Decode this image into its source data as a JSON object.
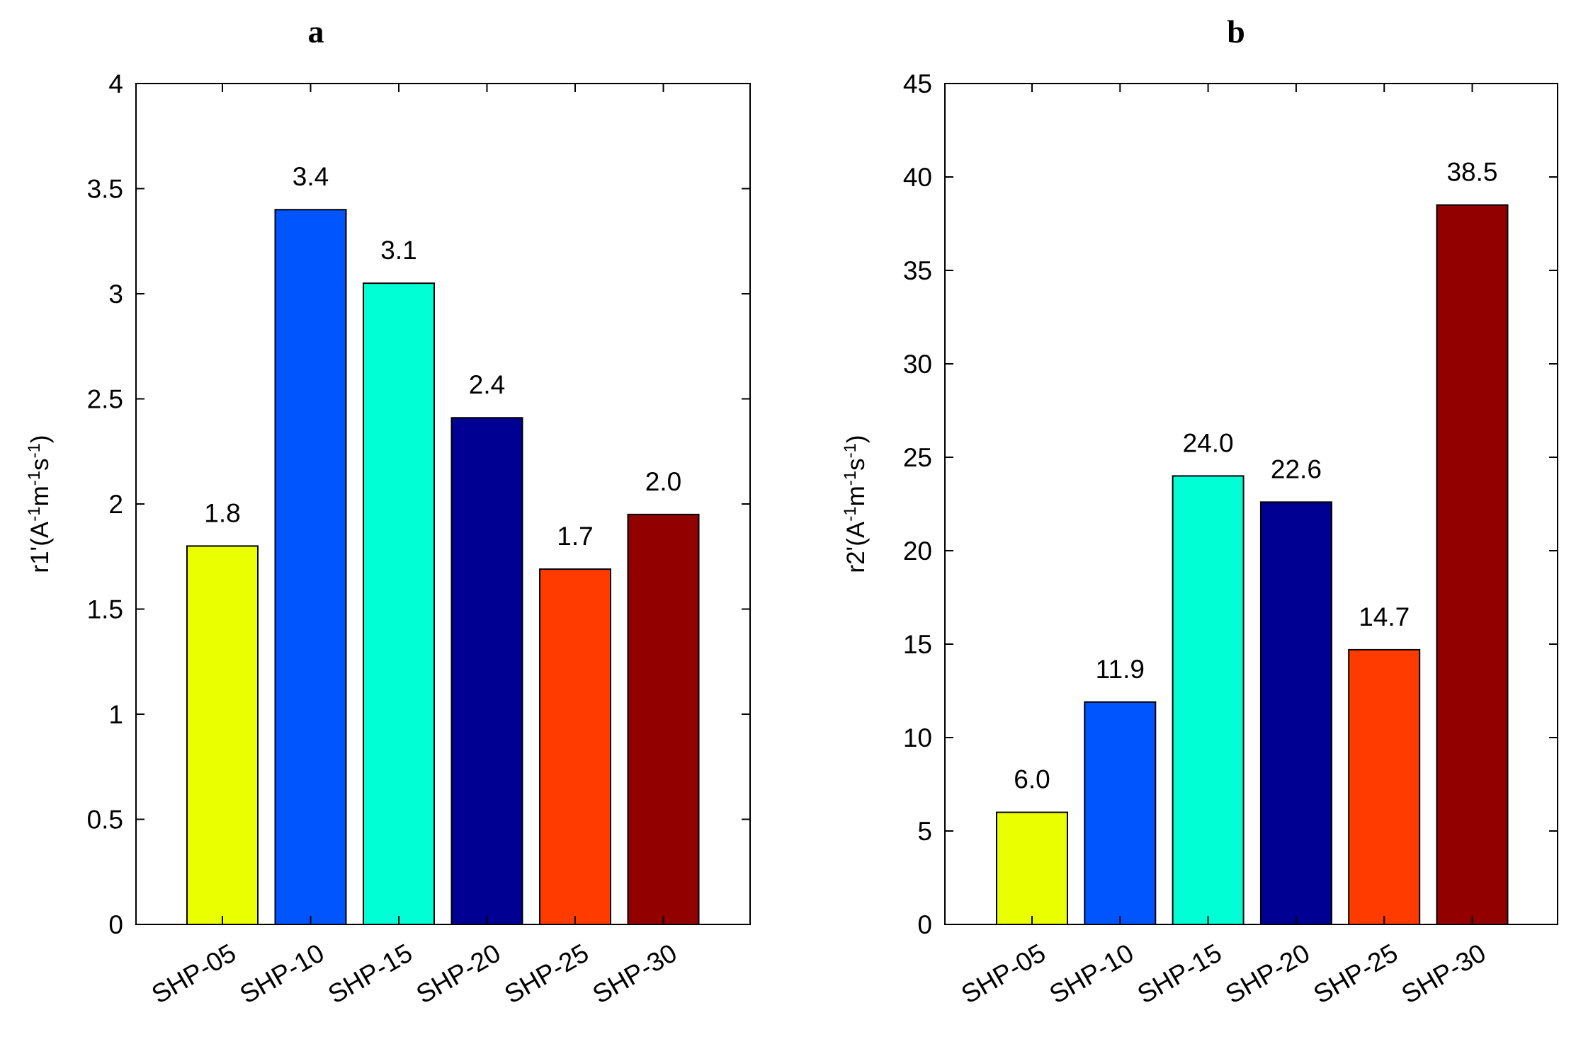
{
  "chart_data": [
    {
      "type": "bar",
      "title": "a",
      "xlabel": "",
      "ylabel": {
        "base": "r1'(A",
        "sup1": "-1",
        "mid": "m",
        "sup2": "-1",
        "mid2": "s",
        "sup3": "-1",
        "end": ")"
      },
      "ylim": [
        0,
        4
      ],
      "yticks": [
        0,
        0.5,
        1,
        1.5,
        2,
        2.5,
        3,
        3.5,
        4
      ],
      "ytick_labels": [
        "0",
        "0.5",
        "1",
        "1.5",
        "2",
        "2.5",
        "3",
        "3.5",
        "4"
      ],
      "categories": [
        "SHP-05",
        "SHP-10",
        "SHP-15",
        "SHP-20",
        "SHP-25",
        "SHP-30"
      ],
      "values": [
        1.8,
        3.4,
        3.05,
        2.41,
        1.69,
        1.95
      ],
      "data_labels": [
        "1.8",
        "3.4",
        "3.1",
        "2.4",
        "1.7",
        "2.0"
      ],
      "colors": [
        "#eaff00",
        "#0055ff",
        "#00ffd5",
        "#000092",
        "#ff3b00",
        "#920000"
      ]
    },
    {
      "type": "bar",
      "title": "b",
      "xlabel": "",
      "ylabel": {
        "base": "r2'(A",
        "sup1": "-1",
        "mid": "m",
        "sup2": "-1",
        "mid2": "s",
        "sup3": "-1",
        "end": ")"
      },
      "ylim": [
        0,
        45
      ],
      "yticks": [
        0,
        5,
        10,
        15,
        20,
        25,
        30,
        35,
        40,
        45
      ],
      "ytick_labels": [
        "0",
        "5",
        "10",
        "15",
        "20",
        "25",
        "30",
        "35",
        "40",
        "45"
      ],
      "categories": [
        "SHP-05",
        "SHP-10",
        "SHP-15",
        "SHP-20",
        "SHP-25",
        "SHP-30"
      ],
      "values": [
        6.0,
        11.9,
        24.0,
        22.6,
        14.7,
        38.5
      ],
      "data_labels": [
        "6.0",
        "11.9",
        "24.0",
        "22.6",
        "14.7",
        "38.5"
      ],
      "colors": [
        "#eaff00",
        "#0055ff",
        "#00ffd5",
        "#000092",
        "#ff3b00",
        "#920000"
      ]
    }
  ]
}
